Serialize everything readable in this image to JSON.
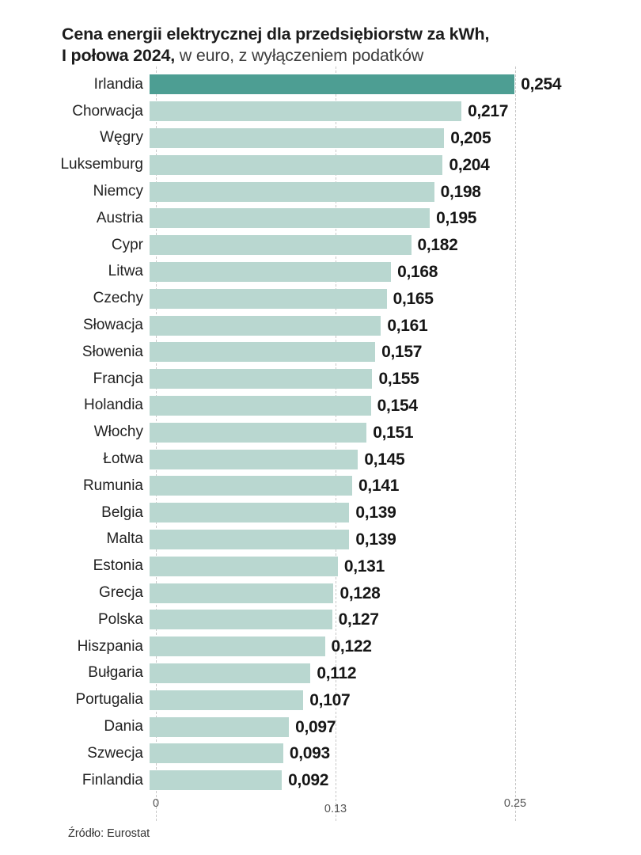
{
  "header": {
    "title_line1": "Cena energii elektrycznej dla przedsiębiorstw za kWh,",
    "title_line2_bold": "I połowa 2024,",
    "subtitle": " w euro, z wyłączeniem podatków"
  },
  "footer": {
    "source": "Źródło: Eurostat"
  },
  "colors": {
    "bar": "#b9d7d0",
    "highlight_bar": "#4d9e93",
    "gridline": "#c7c7c7"
  },
  "chart_data": {
    "type": "bar",
    "orientation": "horizontal",
    "title": "Cena energii elektrycznej dla przedsiębiorstw za kWh, I połowa 2024",
    "subtitle": "w euro, z wyłączeniem podatków",
    "unit": "EUR/kWh",
    "xlim": [
      0,
      0.26
    ],
    "grid": true,
    "highlight_index": 0,
    "x_ticks": [
      {
        "value": 0,
        "label": "0"
      },
      {
        "value": 0.125,
        "label": "0.13"
      },
      {
        "value": 0.25,
        "label": "0.25"
      }
    ],
    "categories": [
      "Irlandia",
      "Chorwacja",
      "Węgry",
      "Luksemburg",
      "Niemcy",
      "Austria",
      "Cypr",
      "Litwa",
      "Czechy",
      "Słowacja",
      "Słowenia",
      "Francja",
      "Holandia",
      "Włochy",
      "Łotwa",
      "Rumunia",
      "Belgia",
      "Malta",
      "Estonia",
      "Grecja",
      "Polska",
      "Hiszpania",
      "Bułgaria",
      "Portugalia",
      "Dania",
      "Szwecja",
      "Finlandia"
    ],
    "values": [
      0.254,
      0.217,
      0.205,
      0.204,
      0.198,
      0.195,
      0.182,
      0.168,
      0.165,
      0.161,
      0.157,
      0.155,
      0.154,
      0.151,
      0.145,
      0.141,
      0.139,
      0.139,
      0.131,
      0.128,
      0.127,
      0.122,
      0.112,
      0.107,
      0.097,
      0.093,
      0.092
    ],
    "value_labels": [
      "0,254",
      "0,217",
      "0,205",
      "0,204",
      "0,198",
      "0,195",
      "0,182",
      "0,168",
      "0,165",
      "0,161",
      "0,157",
      "0,155",
      "0,154",
      "0,151",
      "0,145",
      "0,141",
      "0,139",
      "0,139",
      "0,131",
      "0,128",
      "0,127",
      "0,122",
      "0,112",
      "0,107",
      "0,097",
      "0,093",
      "0,092"
    ],
    "source": "Źródło: Eurostat"
  }
}
